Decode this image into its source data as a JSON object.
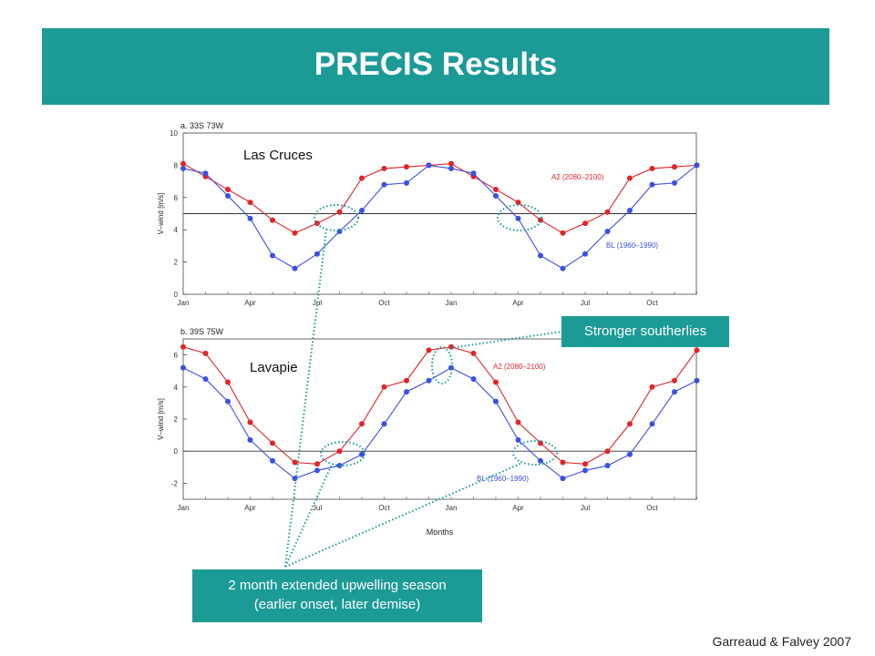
{
  "slide": {
    "title": "PRECIS Results",
    "callout_southerlies": "Stronger southerlies",
    "callout_upwelling_line1": "2 month extended upwelling season",
    "callout_upwelling_line2": "(earlier onset, later demise)",
    "credit": "Garreaud & Falvey 2007"
  },
  "colors": {
    "teal": "#1b9a96",
    "a2": "#e0242a",
    "bl": "#3b4fe0"
  },
  "chart_data": [
    {
      "type": "line",
      "title": "a. 33S 73W",
      "site_label": "Las Cruces",
      "ylabel": "V–wind [m/s]",
      "xlabel": "",
      "ylim": [
        0,
        10
      ],
      "yticks": [
        0,
        2,
        4,
        6,
        8,
        10
      ],
      "reference_line": 5,
      "x_ticklabels": [
        "Jan",
        "Apr",
        "Jul",
        "Oct",
        "Jan",
        "Apr",
        "Jul",
        "Oct"
      ],
      "x": [
        0,
        1,
        2,
        3,
        4,
        5,
        6,
        7,
        8,
        9,
        10,
        11,
        12,
        13,
        14,
        15,
        16,
        17,
        18,
        19,
        20,
        21,
        22,
        23
      ],
      "series": [
        {
          "name": "A2 (2080–2100)",
          "color": "#e0242a",
          "values": [
            8.1,
            7.3,
            6.5,
            5.7,
            4.6,
            3.8,
            4.4,
            5.1,
            7.2,
            7.8,
            7.9,
            8.0,
            8.1,
            7.3,
            6.5,
            5.7,
            4.6,
            3.8,
            4.4,
            5.1,
            7.2,
            7.8,
            7.9,
            8.0
          ]
        },
        {
          "name": "BL (1960–1990)",
          "color": "#3b4fe0",
          "values": [
            7.8,
            7.5,
            6.1,
            4.7,
            2.4,
            1.6,
            2.5,
            3.9,
            5.2,
            6.8,
            6.9,
            8.0,
            7.8,
            7.5,
            6.1,
            4.7,
            2.4,
            1.6,
            2.5,
            3.9,
            5.2,
            6.8,
            6.9,
            8.0
          ]
        }
      ]
    },
    {
      "type": "line",
      "title": "b. 39S 75W",
      "site_label": "Lavapie",
      "ylabel": "V–wind [m/s]",
      "xlabel": "Months",
      "ylim": [
        -3,
        7
      ],
      "yticks": [
        -2,
        0,
        2,
        4,
        6
      ],
      "reference_line": 0,
      "x_ticklabels": [
        "Jan",
        "Apr",
        "Jul",
        "Oct",
        "Jan",
        "Apr",
        "Jul",
        "Oct"
      ],
      "x": [
        0,
        1,
        2,
        3,
        4,
        5,
        6,
        7,
        8,
        9,
        10,
        11,
        12,
        13,
        14,
        15,
        16,
        17,
        18,
        19,
        20,
        21,
        22,
        23
      ],
      "series": [
        {
          "name": "A2 (2080–2100)",
          "color": "#e0242a",
          "values": [
            6.5,
            6.1,
            4.3,
            1.8,
            0.5,
            -0.7,
            -0.8,
            0.0,
            1.7,
            4.0,
            4.4,
            6.3,
            6.5,
            6.1,
            4.3,
            1.8,
            0.5,
            -0.7,
            -0.8,
            0.0,
            1.7,
            4.0,
            4.4,
            6.3
          ]
        },
        {
          "name": "BL (1960–1990)",
          "color": "#3b4fe0",
          "values": [
            5.2,
            4.5,
            3.1,
            0.7,
            -0.6,
            -1.7,
            -1.2,
            -0.9,
            -0.2,
            1.7,
            3.7,
            4.4,
            5.2,
            4.5,
            3.1,
            0.7,
            -0.6,
            -1.7,
            -1.2,
            -0.9,
            -0.2,
            1.7,
            3.7,
            4.4
          ]
        }
      ]
    }
  ]
}
